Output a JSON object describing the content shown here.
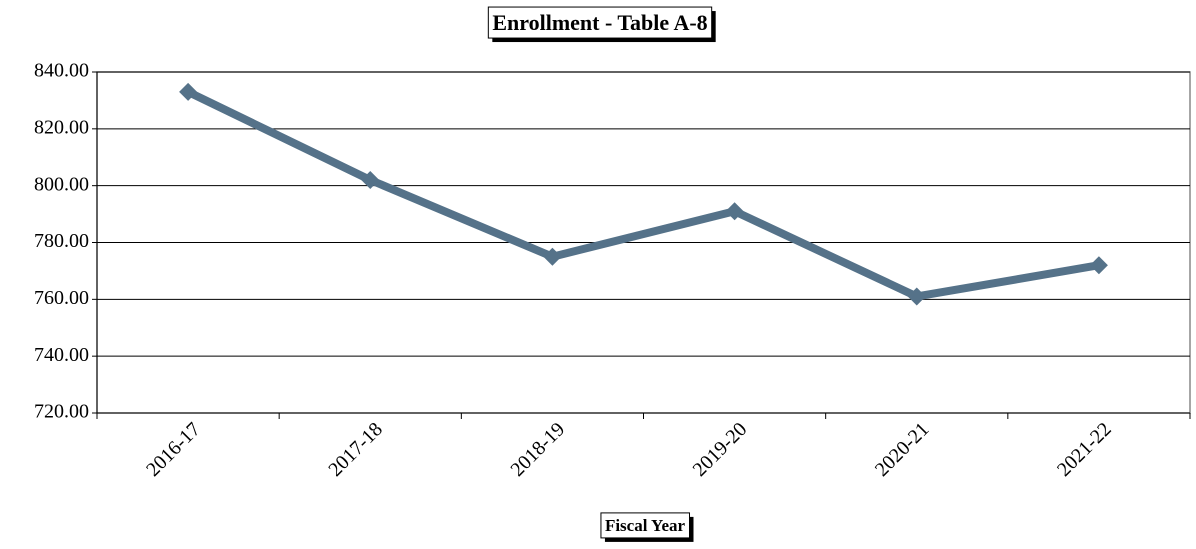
{
  "chart_data": {
    "type": "line",
    "title": "Enrollment - Table A-8",
    "x_label": "Fiscal Year",
    "categories": [
      "2016-17",
      "2017-18",
      "2018-19",
      "2019-20",
      "2020-21",
      "2021-22"
    ],
    "series": [
      {
        "name": "Enrollment",
        "color": "#557289",
        "values": [
          833,
          802,
          775,
          791,
          761,
          772
        ]
      }
    ],
    "ylim": [
      720,
      840
    ],
    "yticks": [
      {
        "value": 720,
        "label": "720.00"
      },
      {
        "value": 740,
        "label": "740.00"
      },
      {
        "value": 760,
        "label": "760.00"
      },
      {
        "value": 780,
        "label": "780.00"
      },
      {
        "value": 800,
        "label": "800.00"
      },
      {
        "value": 820,
        "label": "820.00"
      },
      {
        "value": 840,
        "label": "840.00"
      }
    ],
    "grid": true
  }
}
